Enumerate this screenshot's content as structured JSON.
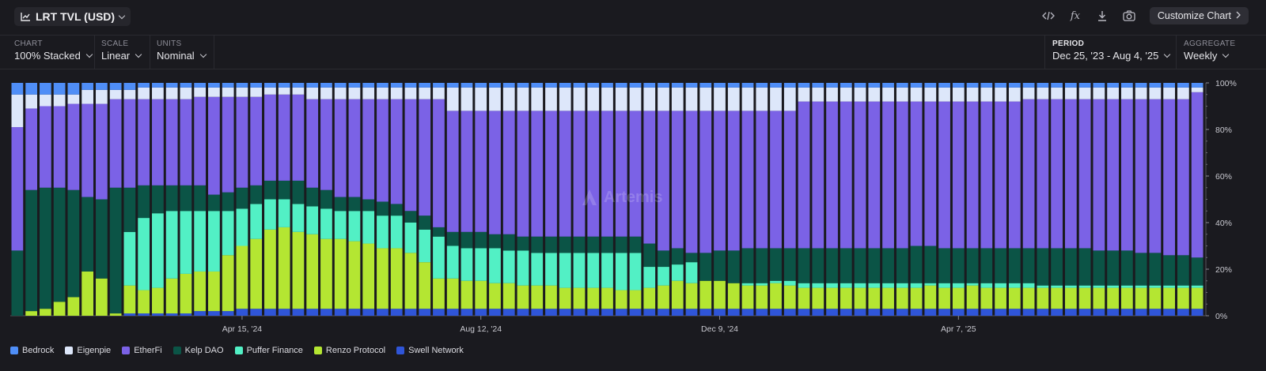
{
  "header": {
    "title": "LRT TVL (USD)",
    "customize_label": "Customize Chart",
    "fx_label": "fx"
  },
  "controls": {
    "chart": {
      "label": "CHART",
      "value": "100% Stacked"
    },
    "scale": {
      "label": "SCALE",
      "value": "Linear"
    },
    "units": {
      "label": "UNITS",
      "value": "Nominal"
    },
    "period": {
      "label": "PERIOD",
      "value": "Dec 25, '23 - Aug 4, '25"
    },
    "aggregate": {
      "label": "AGGREGATE",
      "value": "Weekly"
    }
  },
  "watermark": "Artemis",
  "chart_data": {
    "type": "bar",
    "stacked": "100%",
    "period_start": "Dec 25, '23",
    "period_end": "Aug 4, '25",
    "num_weeks": 85,
    "x_ticks": [
      {
        "index": 16,
        "label": "Apr 15, '24"
      },
      {
        "index": 33,
        "label": "Aug 12, '24"
      },
      {
        "index": 50,
        "label": "Dec 9, '24"
      },
      {
        "index": 67,
        "label": "Apr 7, '25"
      }
    ],
    "y_ticks": [
      "0%",
      "20%",
      "40%",
      "60%",
      "80%",
      "100%"
    ],
    "ylim": [
      0,
      100
    ],
    "series_order": [
      "Swell Network",
      "Renzo Protocol",
      "Puffer Finance",
      "Kelp DAO",
      "EtherFi",
      "Eigenpie",
      "Bedrock"
    ],
    "colors": {
      "Bedrock": "#4f8ef7",
      "Eigenpie": "#dde7fa",
      "EtherFi": "#7b62e6",
      "Kelp DAO": "#0b5446",
      "Puffer Finance": "#52f0c5",
      "Renzo Protocol": "#b4e632",
      "Swell Network": "#2f55d8"
    },
    "cumulative_top_percent": {
      "Swell Network": [
        0,
        0,
        0,
        0,
        0,
        0,
        0,
        0,
        1,
        1,
        1,
        1,
        1,
        2,
        2,
        2,
        3,
        3,
        3,
        3,
        3,
        3,
        3,
        3,
        3,
        3,
        3,
        3,
        3,
        3,
        3,
        3,
        3,
        3,
        3,
        3,
        3,
        3,
        3,
        3,
        3,
        3,
        3,
        3,
        3,
        3,
        3,
        3,
        3,
        3,
        3,
        3,
        3,
        3,
        3,
        3,
        3,
        3,
        3,
        3,
        3,
        3,
        3,
        3,
        3,
        3,
        3,
        3,
        3,
        3,
        3,
        3,
        3,
        3,
        3,
        3,
        3,
        3,
        3,
        3,
        3,
        3,
        3,
        3,
        3
      ],
      "Renzo Protocol": [
        0,
        2,
        3,
        6,
        8,
        19,
        16,
        1,
        13,
        11,
        12,
        16,
        18,
        19,
        19,
        26,
        30,
        33,
        37,
        38,
        36,
        35,
        33,
        33,
        32,
        31,
        29,
        29,
        27,
        23,
        16,
        16,
        15,
        15,
        14,
        14,
        13,
        13,
        13,
        12,
        12,
        12,
        12,
        11,
        11,
        12,
        13,
        15,
        14,
        15,
        15,
        14,
        13,
        13,
        14,
        13,
        12,
        12,
        12,
        12,
        12,
        12,
        12,
        12,
        12,
        13,
        12,
        12,
        13,
        12,
        12,
        12,
        12,
        12,
        12,
        12,
        12,
        12,
        12,
        12,
        12,
        12,
        12,
        12,
        12
      ],
      "Puffer Finance": [
        0,
        2,
        3,
        6,
        8,
        19,
        16,
        1,
        36,
        42,
        44,
        45,
        45,
        45,
        45,
        45,
        46,
        48,
        50,
        50,
        48,
        47,
        46,
        45,
        45,
        45,
        43,
        43,
        40,
        37,
        34,
        30,
        29,
        29,
        29,
        28,
        28,
        27,
        27,
        27,
        27,
        27,
        27,
        27,
        27,
        21,
        21,
        22,
        23,
        15,
        15,
        14,
        14,
        14,
        15,
        15,
        14,
        14,
        14,
        14,
        14,
        14,
        14,
        14,
        14,
        14,
        14,
        14,
        14,
        14,
        14,
        14,
        14,
        13,
        13,
        13,
        13,
        13,
        13,
        13,
        13,
        13,
        13,
        13,
        13
      ],
      "Kelp DAO": [
        28,
        54,
        55,
        55,
        54,
        51,
        50,
        55,
        55,
        56,
        56,
        56,
        56,
        56,
        52,
        53,
        55,
        56,
        58,
        58,
        58,
        55,
        54,
        51,
        51,
        50,
        49,
        48,
        45,
        43,
        38,
        36,
        36,
        36,
        35,
        35,
        34,
        34,
        34,
        34,
        34,
        34,
        34,
        34,
        34,
        31,
        28,
        29,
        27,
        27,
        28,
        28,
        29,
        29,
        29,
        29,
        29,
        29,
        29,
        29,
        29,
        29,
        29,
        29,
        30,
        30,
        29,
        29,
        29,
        29,
        29,
        29,
        29,
        29,
        29,
        29,
        29,
        28,
        28,
        28,
        27,
        27,
        26,
        26,
        25
      ],
      "EtherFi": [
        81,
        89,
        90,
        90,
        91,
        91,
        91,
        93,
        93,
        93,
        93,
        93,
        93,
        94,
        94,
        94,
        94,
        94,
        95,
        95,
        95,
        93,
        93,
        93,
        93,
        93,
        93,
        93,
        93,
        93,
        93,
        88,
        88,
        88,
        88,
        88,
        88,
        88,
        88,
        88,
        88,
        88,
        88,
        88,
        88,
        88,
        88,
        88,
        88,
        88,
        88,
        88,
        88,
        88,
        88,
        88,
        92,
        92,
        92,
        92,
        92,
        92,
        92,
        92,
        92,
        92,
        92,
        92,
        92,
        92,
        92,
        92,
        93,
        93,
        93,
        93,
        93,
        93,
        93,
        93,
        93,
        93,
        93,
        93,
        96
      ],
      "Eigenpie": [
        95,
        95,
        95,
        95,
        95,
        97,
        97,
        97,
        97,
        98,
        98,
        98,
        98,
        98,
        98,
        98,
        98,
        98,
        98,
        98,
        98,
        98,
        98,
        98,
        98,
        98,
        98,
        98,
        98,
        98,
        98,
        98,
        98,
        98,
        98,
        98,
        98,
        98,
        98,
        98,
        98,
        98,
        98,
        98,
        98,
        98,
        98,
        98,
        98,
        98,
        98,
        98,
        98,
        98,
        98,
        98,
        98,
        98,
        98,
        98,
        98,
        98,
        98,
        98,
        98,
        98,
        98,
        98,
        98,
        98,
        98,
        98,
        98,
        98,
        98,
        98,
        98,
        98,
        98,
        98,
        98,
        98,
        98,
        98,
        98
      ],
      "Bedrock": [
        100,
        100,
        100,
        100,
        100,
        100,
        100,
        100,
        100,
        100,
        100,
        100,
        100,
        100,
        100,
        100,
        100,
        100,
        100,
        100,
        100,
        100,
        100,
        100,
        100,
        100,
        100,
        100,
        100,
        100,
        100,
        100,
        100,
        100,
        100,
        100,
        100,
        100,
        100,
        100,
        100,
        100,
        100,
        100,
        100,
        100,
        100,
        100,
        100,
        100,
        100,
        100,
        100,
        100,
        100,
        100,
        100,
        100,
        100,
        100,
        100,
        100,
        100,
        100,
        100,
        100,
        100,
        100,
        100,
        100,
        100,
        100,
        100,
        100,
        100,
        100,
        100,
        100,
        100,
        100,
        100,
        100,
        100,
        100,
        100
      ]
    }
  },
  "legend": [
    {
      "name": "Bedrock",
      "color": "#4f8ef7"
    },
    {
      "name": "Eigenpie",
      "color": "#dde7fa"
    },
    {
      "name": "EtherFi",
      "color": "#7b62e6"
    },
    {
      "name": "Kelp DAO",
      "color": "#0b5446"
    },
    {
      "name": "Puffer Finance",
      "color": "#52f0c5"
    },
    {
      "name": "Renzo Protocol",
      "color": "#b4e632"
    },
    {
      "name": "Swell Network",
      "color": "#2f55d8"
    }
  ]
}
